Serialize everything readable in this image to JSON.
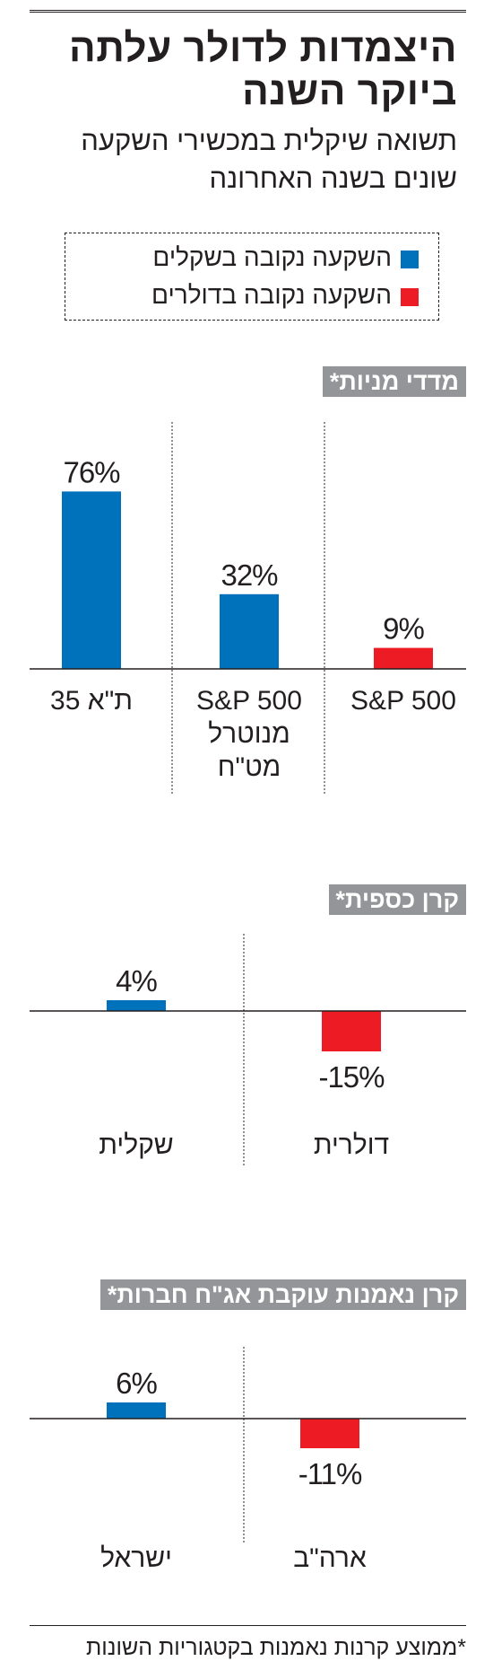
{
  "header": {
    "title_line1": "היצמדות לדולר עלתה",
    "title_line2": "ביוקר השנה",
    "subtitle_line1": "תשואה שיקלית במכשירי השקעה",
    "subtitle_line2": "שונים בשנה האחרונה"
  },
  "legend": {
    "items": [
      {
        "label": "השקעה נקובה בשקלים",
        "color": "#0072bc"
      },
      {
        "label": "השקעה נקובה בדולרים",
        "color": "#ed1c24"
      }
    ]
  },
  "colors": {
    "shekel": "#0072bc",
    "dollar": "#ed1c24",
    "header_bg": "#939598"
  },
  "footnote": "*ממוצע קרנות נאמנות בקטגוריות השונות",
  "chart_data": [
    {
      "type": "bar",
      "title": "מדדי מניות*",
      "categories": [
        "ת\"א 35",
        "S&P 500 מנוטרל מט\"ח",
        "S&P 500"
      ],
      "category_lines": [
        [
          "ת\"א 35"
        ],
        [
          "S&P 500",
          "מנוטרל",
          "מט\"ח"
        ],
        [
          "S&P 500"
        ]
      ],
      "values": [
        76,
        32,
        9
      ],
      "value_labels": [
        "76%",
        "32%",
        "9%"
      ],
      "series_of_bar": [
        "shekel",
        "shekel",
        "dollar"
      ]
    },
    {
      "type": "bar",
      "title": "קרן כספית*",
      "categories": [
        "שקלית",
        "דולרית"
      ],
      "category_lines": [
        [
          "שקלית"
        ],
        [
          "דולרית"
        ]
      ],
      "values": [
        4,
        -15
      ],
      "value_labels": [
        "4%",
        "-15%"
      ],
      "series_of_bar": [
        "shekel",
        "dollar"
      ]
    },
    {
      "type": "bar",
      "title": "קרן נאמנות עוקבת אג\"ח חברות*",
      "categories": [
        "ישראל",
        "ארה\"ב"
      ],
      "category_lines": [
        [
          "ישראל"
        ],
        [
          "ארה\"ב"
        ]
      ],
      "values": [
        6,
        -11
      ],
      "value_labels": [
        "6%",
        "-11%"
      ],
      "series_of_bar": [
        "shekel",
        "dollar"
      ]
    }
  ]
}
